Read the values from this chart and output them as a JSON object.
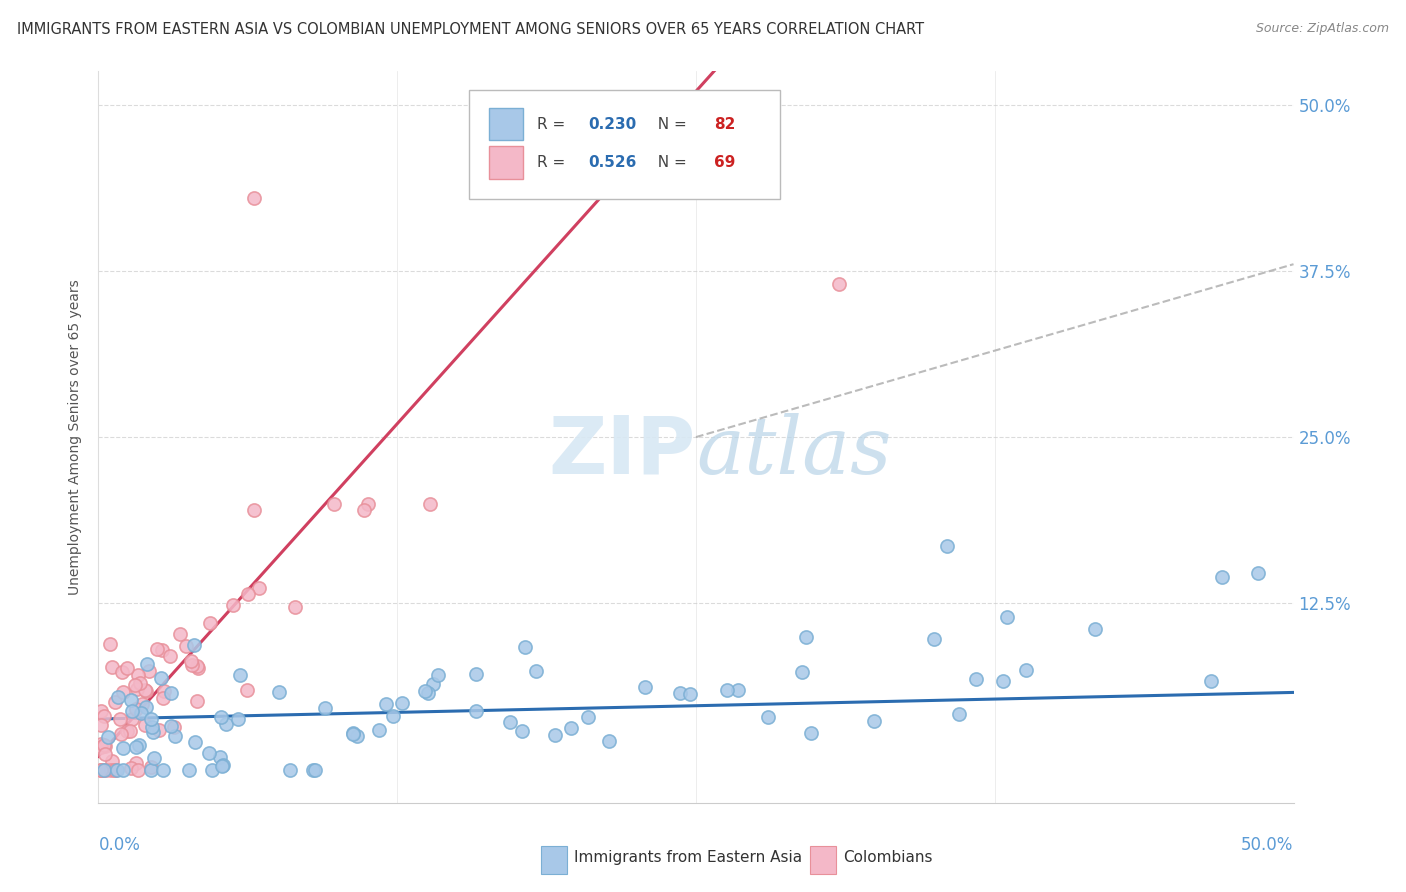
{
  "title": "IMMIGRANTS FROM EASTERN ASIA VS COLOMBIAN UNEMPLOYMENT AMONG SENIORS OVER 65 YEARS CORRELATION CHART",
  "source": "Source: ZipAtlas.com",
  "ylabel": "Unemployment Among Seniors over 65 years",
  "yticks": [
    0.0,
    0.125,
    0.25,
    0.375,
    0.5
  ],
  "ytick_labels": [
    "",
    "12.5%",
    "25.0%",
    "37.5%",
    "50.0%"
  ],
  "xlim": [
    0.0,
    0.5
  ],
  "ylim": [
    -0.025,
    0.525
  ],
  "series1_name": "Immigrants from Eastern Asia",
  "series1_R": 0.23,
  "series1_N": 82,
  "series1_color": "#a8c8e8",
  "series1_edge_color": "#7bafd4",
  "series1_trend_color": "#2b6cb0",
  "series2_name": "Colombians",
  "series2_R": 0.526,
  "series2_N": 69,
  "series2_color": "#f4b8c8",
  "series2_edge_color": "#e8909a",
  "series2_trend_color": "#d04060",
  "background_color": "#ffffff",
  "watermark_color": "#d8e8f4",
  "grid_color": "#cccccc",
  "legend_R_color": "#2b6cb0",
  "legend_N_color": "#cc2222",
  "axis_label_color": "#5b9bd5",
  "title_color": "#333333",
  "source_color": "#888888"
}
